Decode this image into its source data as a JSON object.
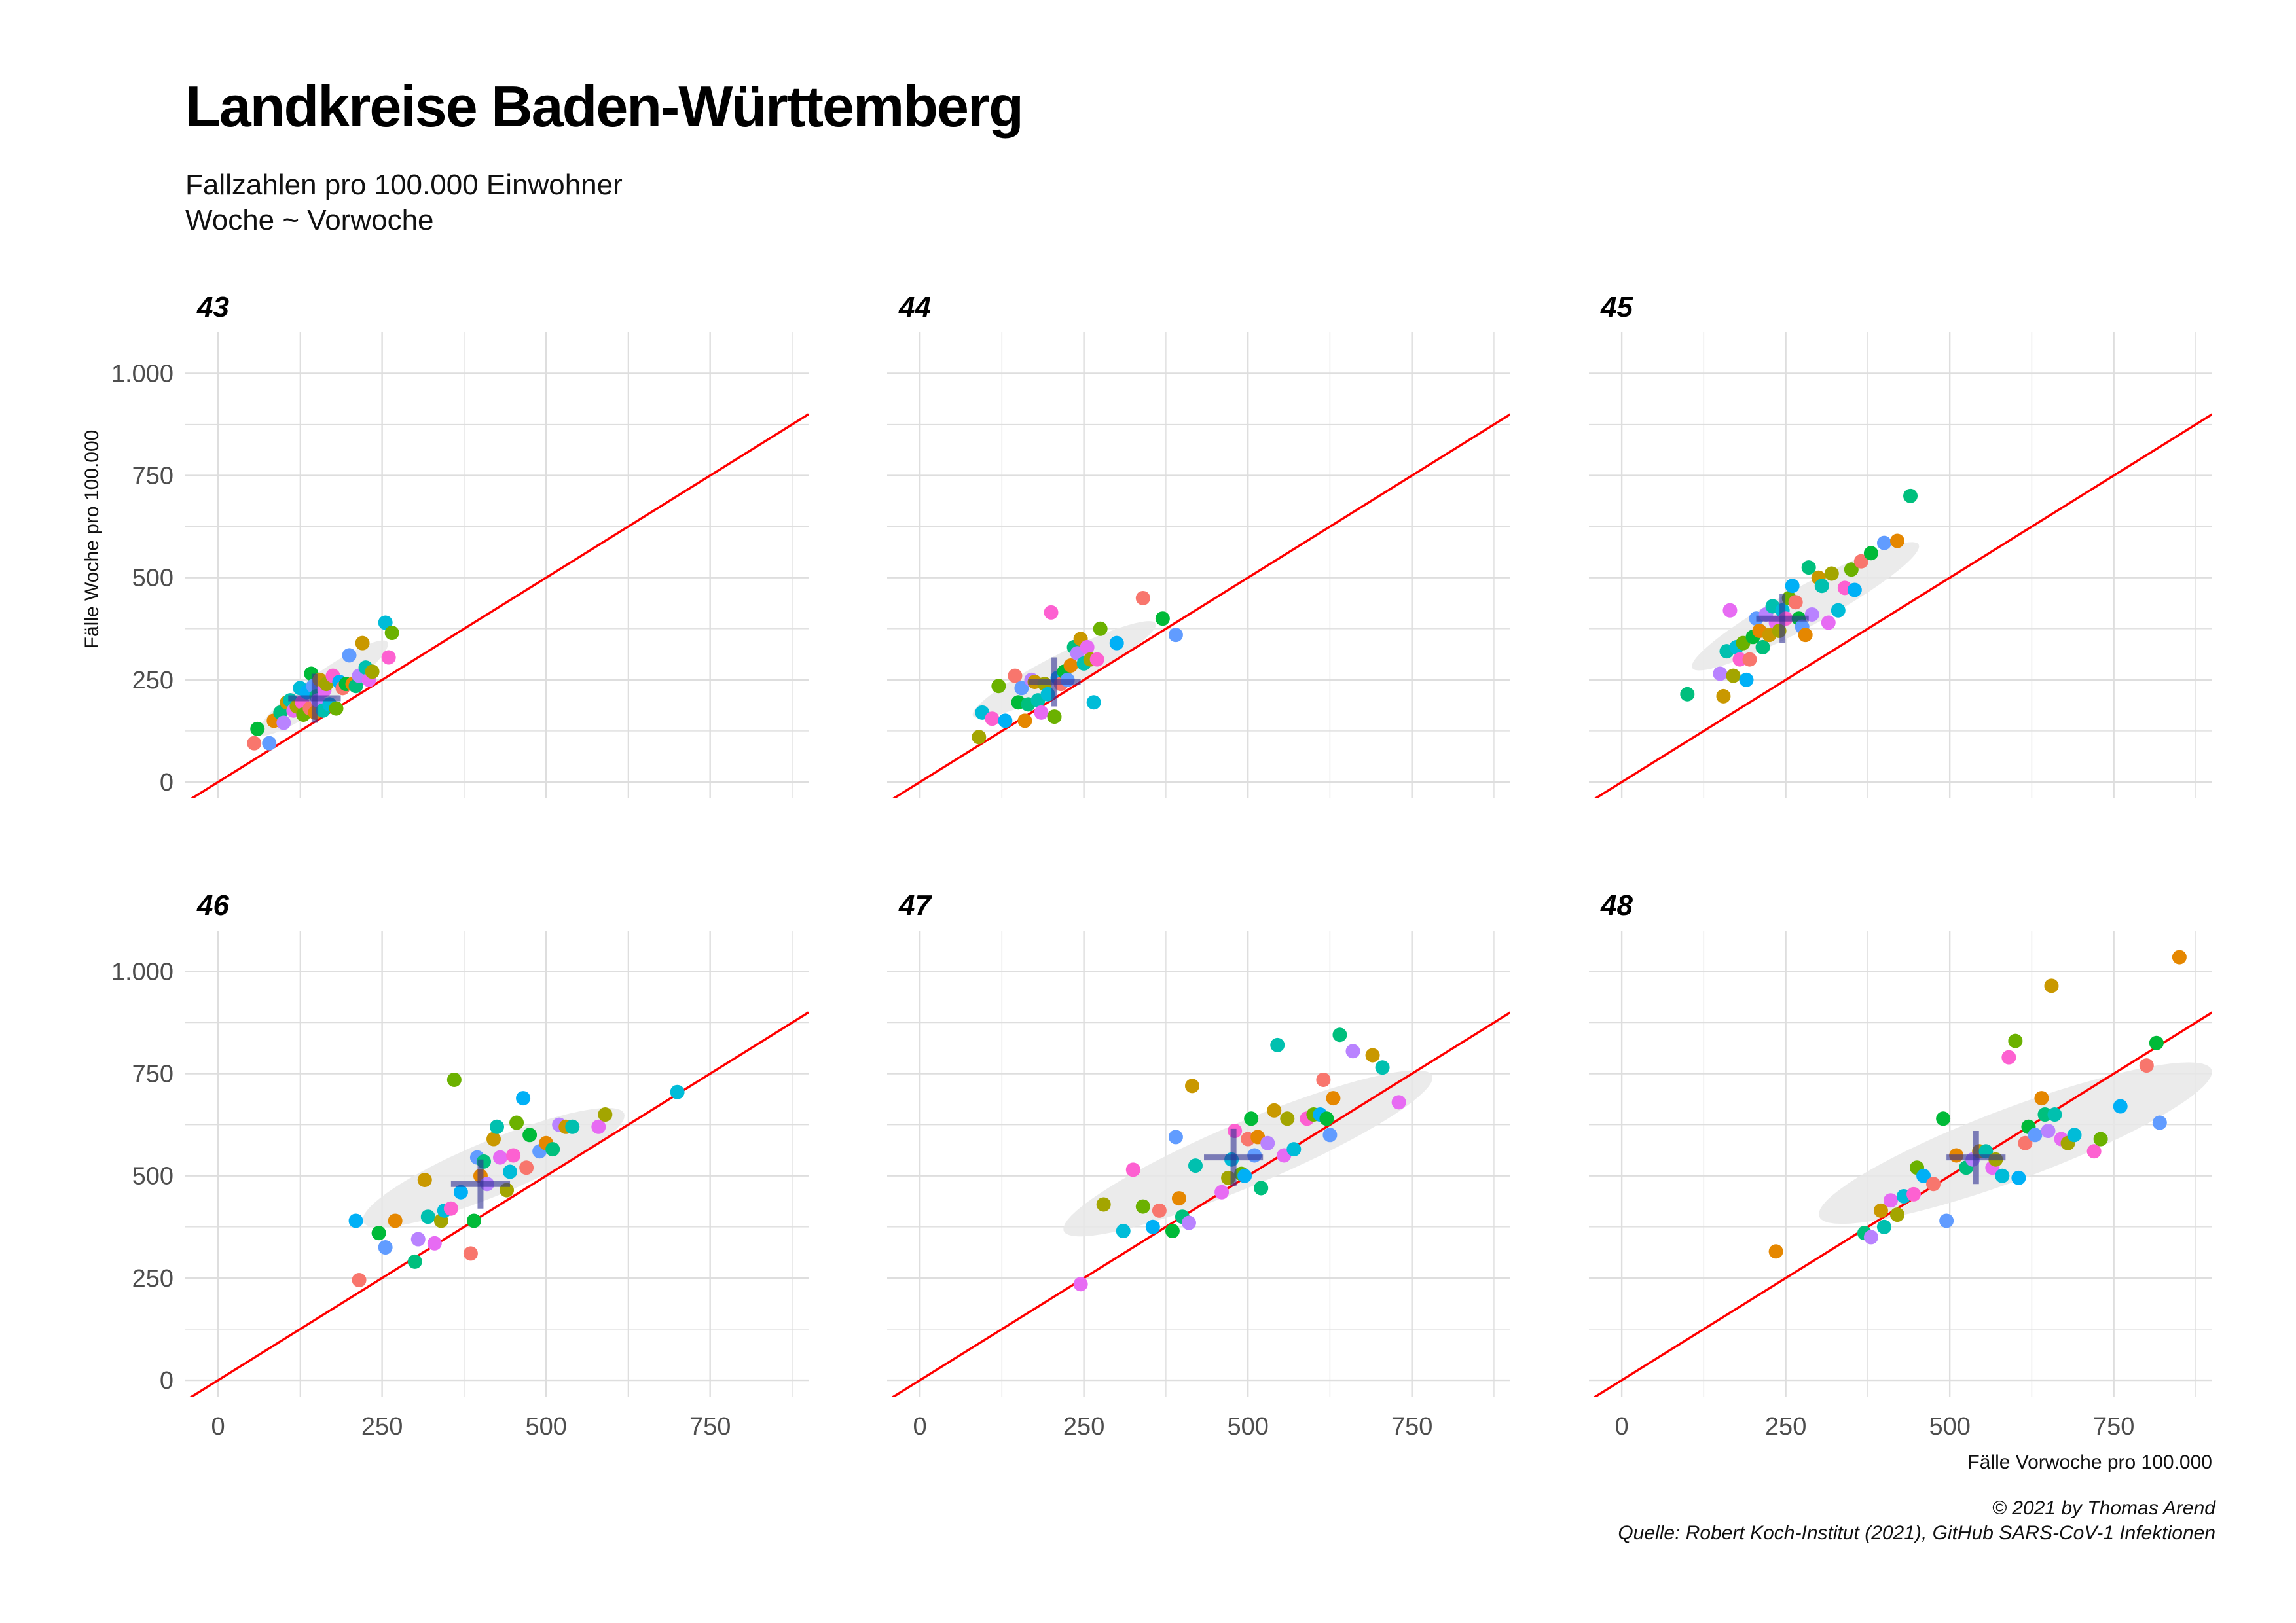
{
  "title": "Landkreise Baden-Württemberg",
  "subtitle_lines": [
    "Fallzahlen pro 100.000 Einwohner",
    "Woche ~ Vorwoche"
  ],
  "caption_lines": [
    "© 2021 by Thomas Arend",
    "Quelle: Robert Koch-Institut (2021), GitHub SARS-CoV-1 Infektionen"
  ],
  "chart_data": {
    "type": "scatter",
    "xlabel": "Fälle Vorwoche pro 100.000",
    "ylabel": "Fälle Woche pro 100.000",
    "xlim": [
      -50,
      900
    ],
    "ylim": [
      -40,
      1100
    ],
    "x_ticks": [
      0,
      250,
      500,
      750
    ],
    "x_tick_labels": [
      "0",
      "250",
      "500",
      "750"
    ],
    "y_ticks": [
      0,
      250,
      500,
      750,
      1000
    ],
    "y_tick_labels": [
      "0",
      "250",
      "500",
      "750",
      "1.000"
    ],
    "grid": true,
    "reference_line": {
      "slope": 1,
      "intercept": 0,
      "color": "#ff0000"
    },
    "point_colors": [
      "#F8766D",
      "#E58700",
      "#C99800",
      "#A3A500",
      "#6BB100",
      "#00BA38",
      "#00BF7D",
      "#00C0AF",
      "#00BCD8",
      "#00B0F6",
      "#619CFF",
      "#B983FF",
      "#E76BF3",
      "#FD61D1"
    ],
    "mean_marker_color": "#2e3192",
    "ellipse_color": "#e8e8e8",
    "facets": [
      {
        "label": "43",
        "mean": [
          147,
          205
        ],
        "cross_half": {
          "x": 40,
          "y": 60
        },
        "ellipse": {
          "center": [
            160,
            230
          ],
          "semi_major": 150,
          "semi_minor": 30,
          "angle": 50
        },
        "points": [
          [
            55,
            95
          ],
          [
            60,
            130
          ],
          [
            78,
            95
          ],
          [
            85,
            150
          ],
          [
            95,
            170
          ],
          [
            100,
            145
          ],
          [
            105,
            195
          ],
          [
            110,
            200
          ],
          [
            115,
            175
          ],
          [
            120,
            185
          ],
          [
            125,
            230
          ],
          [
            128,
            195
          ],
          [
            130,
            165
          ],
          [
            135,
            220
          ],
          [
            140,
            180
          ],
          [
            142,
            265
          ],
          [
            145,
            235
          ],
          [
            148,
            170
          ],
          [
            150,
            210
          ],
          [
            152,
            200
          ],
          [
            155,
            250
          ],
          [
            160,
            175
          ],
          [
            162,
            225
          ],
          [
            165,
            240
          ],
          [
            170,
            190
          ],
          [
            175,
            260
          ],
          [
            180,
            180
          ],
          [
            185,
            245
          ],
          [
            190,
            230
          ],
          [
            195,
            240
          ],
          [
            200,
            310
          ],
          [
            205,
            240
          ],
          [
            210,
            235
          ],
          [
            215,
            260
          ],
          [
            220,
            340
          ],
          [
            225,
            280
          ],
          [
            230,
            250
          ],
          [
            235,
            270
          ],
          [
            255,
            390
          ],
          [
            260,
            305
          ],
          [
            265,
            365
          ]
        ]
      },
      {
        "label": "44",
        "mean": [
          205,
          245
        ],
        "cross_half": {
          "x": 40,
          "y": 60
        },
        "ellipse": {
          "center": [
            220,
            275
          ],
          "semi_major": 180,
          "semi_minor": 35,
          "angle": 40
        },
        "points": [
          [
            90,
            110
          ],
          [
            95,
            170
          ],
          [
            110,
            155
          ],
          [
            120,
            235
          ],
          [
            130,
            150
          ],
          [
            145,
            260
          ],
          [
            150,
            195
          ],
          [
            155,
            230
          ],
          [
            160,
            150
          ],
          [
            165,
            190
          ],
          [
            170,
            250
          ],
          [
            175,
            245
          ],
          [
            180,
            200
          ],
          [
            185,
            170
          ],
          [
            190,
            240
          ],
          [
            195,
            215
          ],
          [
            200,
            415
          ],
          [
            205,
            160
          ],
          [
            210,
            255
          ],
          [
            215,
            240
          ],
          [
            220,
            270
          ],
          [
            225,
            250
          ],
          [
            230,
            285
          ],
          [
            235,
            330
          ],
          [
            240,
            315
          ],
          [
            245,
            350
          ],
          [
            250,
            290
          ],
          [
            255,
            330
          ],
          [
            260,
            300
          ],
          [
            265,
            195
          ],
          [
            270,
            300
          ],
          [
            275,
            375
          ],
          [
            300,
            340
          ],
          [
            340,
            450
          ],
          [
            370,
            400
          ],
          [
            390,
            360
          ]
        ]
      },
      {
        "label": "45",
        "mean": [
          245,
          400
        ],
        "cross_half": {
          "x": 40,
          "y": 60
        },
        "ellipse": {
          "center": [
            280,
            430
          ],
          "semi_major": 230,
          "semi_minor": 42,
          "angle": 42
        },
        "points": [
          [
            100,
            215
          ],
          [
            150,
            265
          ],
          [
            155,
            210
          ],
          [
            160,
            320
          ],
          [
            165,
            420
          ],
          [
            170,
            260
          ],
          [
            175,
            330
          ],
          [
            180,
            300
          ],
          [
            185,
            340
          ],
          [
            190,
            250
          ],
          [
            195,
            300
          ],
          [
            200,
            355
          ],
          [
            205,
            400
          ],
          [
            210,
            370
          ],
          [
            215,
            330
          ],
          [
            220,
            410
          ],
          [
            225,
            360
          ],
          [
            230,
            430
          ],
          [
            235,
            390
          ],
          [
            240,
            370
          ],
          [
            245,
            420
          ],
          [
            250,
            400
          ],
          [
            255,
            450
          ],
          [
            260,
            480
          ],
          [
            265,
            440
          ],
          [
            270,
            400
          ],
          [
            275,
            380
          ],
          [
            280,
            360
          ],
          [
            285,
            525
          ],
          [
            290,
            410
          ],
          [
            300,
            500
          ],
          [
            305,
            480
          ],
          [
            315,
            390
          ],
          [
            320,
            510
          ],
          [
            330,
            420
          ],
          [
            340,
            475
          ],
          [
            350,
            520
          ],
          [
            355,
            470
          ],
          [
            365,
            540
          ],
          [
            380,
            560
          ],
          [
            400,
            585
          ],
          [
            420,
            590
          ],
          [
            440,
            700
          ]
        ]
      },
      {
        "label": "46",
        "mean": [
          400,
          480
        ],
        "cross_half": {
          "x": 45,
          "y": 60
        },
        "ellipse": {
          "center": [
            420,
            520
          ],
          "semi_major": 240,
          "semi_minor": 60,
          "angle": 35
        },
        "points": [
          [
            210,
            390
          ],
          [
            215,
            245
          ],
          [
            245,
            360
          ],
          [
            255,
            325
          ],
          [
            270,
            390
          ],
          [
            300,
            290
          ],
          [
            305,
            345
          ],
          [
            315,
            490
          ],
          [
            320,
            400
          ],
          [
            330,
            335
          ],
          [
            340,
            390
          ],
          [
            345,
            415
          ],
          [
            355,
            420
          ],
          [
            360,
            735
          ],
          [
            370,
            460
          ],
          [
            385,
            310
          ],
          [
            390,
            390
          ],
          [
            395,
            545
          ],
          [
            400,
            500
          ],
          [
            405,
            535
          ],
          [
            410,
            480
          ],
          [
            420,
            590
          ],
          [
            425,
            620
          ],
          [
            430,
            545
          ],
          [
            440,
            465
          ],
          [
            445,
            510
          ],
          [
            450,
            550
          ],
          [
            455,
            630
          ],
          [
            465,
            690
          ],
          [
            470,
            520
          ],
          [
            475,
            600
          ],
          [
            490,
            560
          ],
          [
            500,
            580
          ],
          [
            510,
            565
          ],
          [
            520,
            625
          ],
          [
            530,
            620
          ],
          [
            540,
            620
          ],
          [
            580,
            620
          ],
          [
            590,
            650
          ],
          [
            700,
            705
          ]
        ]
      },
      {
        "label": "47",
        "mean": [
          478,
          545
        ],
        "cross_half": {
          "x": 45,
          "y": 70
        },
        "ellipse": {
          "center": [
            500,
            555
          ],
          "semi_major": 340,
          "semi_minor": 70,
          "angle": 35
        },
        "points": [
          [
            245,
            235
          ],
          [
            280,
            430
          ],
          [
            310,
            365
          ],
          [
            325,
            515
          ],
          [
            340,
            425
          ],
          [
            355,
            375
          ],
          [
            365,
            415
          ],
          [
            385,
            365
          ],
          [
            390,
            595
          ],
          [
            395,
            445
          ],
          [
            400,
            400
          ],
          [
            410,
            385
          ],
          [
            415,
            720
          ],
          [
            420,
            525
          ],
          [
            460,
            460
          ],
          [
            470,
            495
          ],
          [
            475,
            540
          ],
          [
            480,
            610
          ],
          [
            490,
            505
          ],
          [
            495,
            500
          ],
          [
            500,
            590
          ],
          [
            505,
            640
          ],
          [
            510,
            550
          ],
          [
            515,
            595
          ],
          [
            520,
            470
          ],
          [
            530,
            580
          ],
          [
            540,
            660
          ],
          [
            545,
            820
          ],
          [
            555,
            550
          ],
          [
            560,
            640
          ],
          [
            570,
            565
          ],
          [
            590,
            640
          ],
          [
            600,
            650
          ],
          [
            610,
            650
          ],
          [
            615,
            735
          ],
          [
            620,
            640
          ],
          [
            625,
            600
          ],
          [
            630,
            690
          ],
          [
            640,
            845
          ],
          [
            660,
            805
          ],
          [
            690,
            795
          ],
          [
            705,
            765
          ],
          [
            730,
            680
          ]
        ]
      },
      {
        "label": "48",
        "mean": [
          540,
          545
        ],
        "cross_half": {
          "x": 45,
          "y": 65
        },
        "ellipse": {
          "center": [
            600,
            580
          ],
          "semi_major": 350,
          "semi_minor": 80,
          "angle": 32
        },
        "points": [
          [
            235,
            315
          ],
          [
            370,
            360
          ],
          [
            380,
            350
          ],
          [
            395,
            415
          ],
          [
            400,
            375
          ],
          [
            410,
            440
          ],
          [
            420,
            405
          ],
          [
            430,
            450
          ],
          [
            445,
            455
          ],
          [
            450,
            520
          ],
          [
            460,
            500
          ],
          [
            475,
            480
          ],
          [
            490,
            640
          ],
          [
            495,
            390
          ],
          [
            510,
            550
          ],
          [
            525,
            520
          ],
          [
            535,
            540
          ],
          [
            545,
            560
          ],
          [
            555,
            560
          ],
          [
            565,
            520
          ],
          [
            570,
            540
          ],
          [
            580,
            500
          ],
          [
            590,
            790
          ],
          [
            600,
            830
          ],
          [
            605,
            495
          ],
          [
            615,
            580
          ],
          [
            620,
            620
          ],
          [
            630,
            600
          ],
          [
            640,
            690
          ],
          [
            645,
            650
          ],
          [
            650,
            610
          ],
          [
            655,
            965
          ],
          [
            660,
            650
          ],
          [
            670,
            590
          ],
          [
            680,
            580
          ],
          [
            690,
            600
          ],
          [
            720,
            560
          ],
          [
            730,
            590
          ],
          [
            760,
            670
          ],
          [
            800,
            770
          ],
          [
            815,
            825
          ],
          [
            820,
            630
          ],
          [
            850,
            1035
          ]
        ]
      }
    ]
  }
}
